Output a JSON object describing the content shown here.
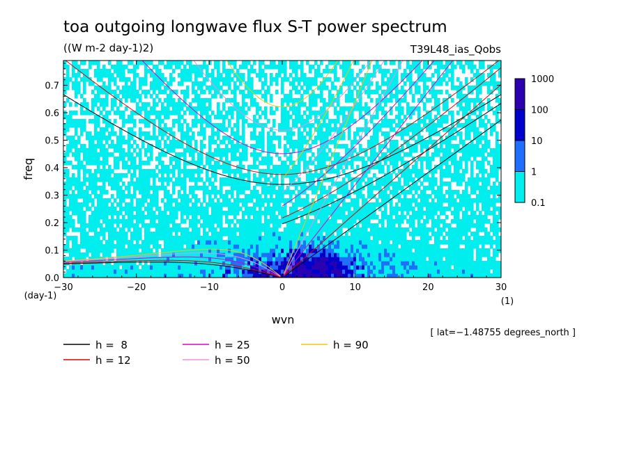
{
  "chart_data": {
    "type": "heatmap",
    "title": "toa outgoing longwave flux S-T power spectrum",
    "units": "((W m-2 day-1)2)",
    "dataset": "T39L48_ias_Qobs",
    "xlabel": "wvn",
    "xunit": "(1)",
    "ylabel": "freq",
    "yunit": "(day-1)",
    "xlim": [
      -30,
      30
    ],
    "ylim": [
      0,
      0.79
    ],
    "xticks": [
      "−30",
      "−20",
      "−10",
      "0",
      "10",
      "20",
      "30"
    ],
    "xtick_values": [
      -30,
      -20,
      -10,
      0,
      10,
      20,
      30
    ],
    "yticks": [
      "0.0",
      "0.1",
      "0.2",
      "0.3",
      "0.4",
      "0.5",
      "0.6",
      "0.7"
    ],
    "ytick_values": [
      0,
      0.1,
      0.2,
      0.3,
      0.4,
      0.5,
      0.6,
      0.7
    ],
    "annotation": "[ lat=−1.48755 degrees_north ]",
    "colorbar": {
      "levels": [
        "0.1",
        "1",
        "10",
        "100",
        "1000"
      ],
      "colors": [
        "#00eeee",
        "#1e6fff",
        "#0000cd",
        "#2a00b0"
      ]
    },
    "series": [
      {
        "name": "h =  8",
        "h": 8,
        "color": "#000000"
      },
      {
        "name": "h = 12",
        "h": 12,
        "color": "#e00000"
      },
      {
        "name": "h = 25",
        "h": 25,
        "color": "#e000c0"
      },
      {
        "name": "h = 50",
        "h": 50,
        "color": "#e890e0"
      },
      {
        "name": "h = 90",
        "h": 90,
        "color": "#f0c800"
      }
    ]
  }
}
